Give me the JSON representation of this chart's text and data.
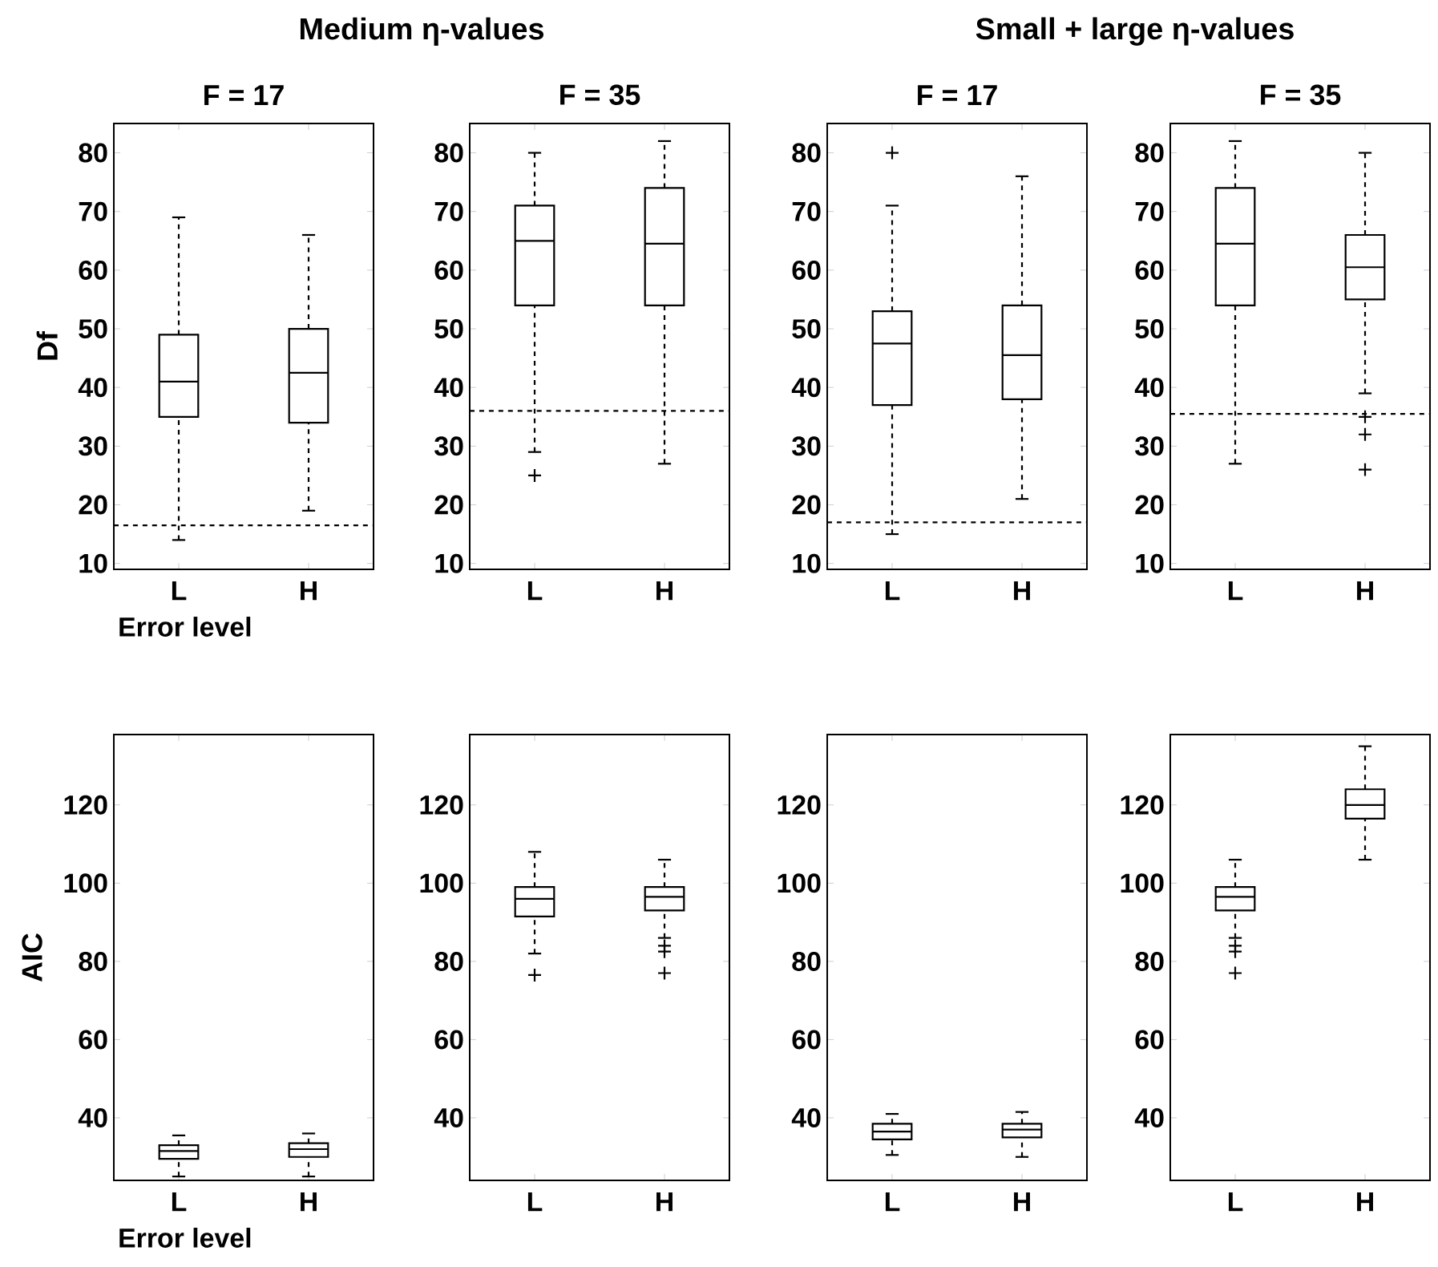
{
  "chart_data": [
    {
      "type": "box",
      "title": "Medium η-values",
      "subtitle": "F = 17",
      "ylabel": "Df",
      "xlabel": "Error level",
      "categories": [
        "L",
        "H"
      ],
      "ylim": [
        9,
        85
      ],
      "yticks": [
        10,
        20,
        30,
        40,
        50,
        60,
        70,
        80
      ],
      "boxes": [
        {
          "low": 14,
          "q1": 35,
          "median": 41,
          "q3": 49,
          "high": 69
        },
        {
          "low": 19,
          "q1": 34,
          "median": 42.5,
          "q3": 50,
          "high": 66
        }
      ],
      "ref_lines": [
        {
          "axis": "y",
          "value": 16.5,
          "line_style": "dashed"
        }
      ]
    },
    {
      "type": "box",
      "subtitle": "F = 35",
      "categories": [
        "L",
        "H"
      ],
      "ylim": [
        9,
        85
      ],
      "yticks": [
        10,
        20,
        30,
        40,
        50,
        60,
        70,
        80
      ],
      "boxes": [
        {
          "low": 29,
          "q1": 54,
          "median": 65,
          "q3": 71,
          "high": 80,
          "outliers": [
            25
          ]
        },
        {
          "low": 27,
          "q1": 54,
          "median": 64.5,
          "q3": 74,
          "high": 82
        }
      ],
      "ref_lines": [
        {
          "axis": "y",
          "value": 36,
          "line_style": "dashed"
        }
      ]
    },
    {
      "type": "box",
      "title": "Small + large η-values",
      "subtitle": "F = 17",
      "categories": [
        "L",
        "H"
      ],
      "ylim": [
        9,
        85
      ],
      "yticks": [
        10,
        20,
        30,
        40,
        50,
        60,
        70,
        80
      ],
      "boxes": [
        {
          "low": 15,
          "q1": 37,
          "median": 47.5,
          "q3": 53,
          "high": 71,
          "outliers": [
            80
          ]
        },
        {
          "low": 21,
          "q1": 38,
          "median": 45.5,
          "q3": 54,
          "high": 76
        }
      ],
      "ref_lines": [
        {
          "axis": "y",
          "value": 17,
          "line_style": "dashed"
        }
      ]
    },
    {
      "type": "box",
      "subtitle": "F = 35",
      "categories": [
        "L",
        "H"
      ],
      "ylim": [
        9,
        85
      ],
      "yticks": [
        10,
        20,
        30,
        40,
        50,
        60,
        70,
        80
      ],
      "boxes": [
        {
          "low": 27,
          "q1": 54,
          "median": 64.5,
          "q3": 74,
          "high": 82
        },
        {
          "low": 39,
          "q1": 55,
          "median": 60.5,
          "q3": 66,
          "high": 80,
          "outliers": [
            35,
            32,
            26
          ]
        }
      ],
      "ref_lines": [
        {
          "axis": "y",
          "value": 35.5,
          "line_style": "dashed"
        }
      ]
    },
    {
      "type": "box",
      "ylabel": "AIC",
      "xlabel": "Error level",
      "categories": [
        "L",
        "H"
      ],
      "ylim": [
        24,
        138
      ],
      "yticks": [
        40,
        60,
        80,
        100,
        120
      ],
      "boxes": [
        {
          "low": 25,
          "q1": 29.5,
          "median": 31.5,
          "q3": 33,
          "high": 35.5
        },
        {
          "low": 25,
          "q1": 30,
          "median": 32,
          "q3": 33.5,
          "high": 36
        }
      ]
    },
    {
      "type": "box",
      "categories": [
        "L",
        "H"
      ],
      "ylim": [
        24,
        138
      ],
      "yticks": [
        40,
        60,
        80,
        100,
        120
      ],
      "boxes": [
        {
          "low": 82,
          "q1": 91.5,
          "median": 96,
          "q3": 99,
          "high": 108,
          "outliers": [
            76.5
          ]
        },
        {
          "low": 86,
          "q1": 93,
          "median": 96.5,
          "q3": 99,
          "high": 106,
          "outliers": [
            84,
            82.5,
            77
          ]
        }
      ]
    },
    {
      "type": "box",
      "categories": [
        "L",
        "H"
      ],
      "ylim": [
        24,
        138
      ],
      "yticks": [
        40,
        60,
        80,
        100,
        120
      ],
      "boxes": [
        {
          "low": 30.5,
          "q1": 34.5,
          "median": 36.5,
          "q3": 38.5,
          "high": 41
        },
        {
          "low": 30,
          "q1": 35,
          "median": 37,
          "q3": 38.5,
          "high": 41.5
        }
      ]
    },
    {
      "type": "box",
      "categories": [
        "L",
        "H"
      ],
      "ylim": [
        24,
        138
      ],
      "yticks": [
        40,
        60,
        80,
        100,
        120
      ],
      "boxes": [
        {
          "low": 86,
          "q1": 93,
          "median": 96.5,
          "q3": 99,
          "high": 106,
          "outliers": [
            84,
            82.5,
            77
          ]
        },
        {
          "low": 106,
          "q1": 116.5,
          "median": 120,
          "q3": 124,
          "high": 135
        }
      ]
    }
  ]
}
